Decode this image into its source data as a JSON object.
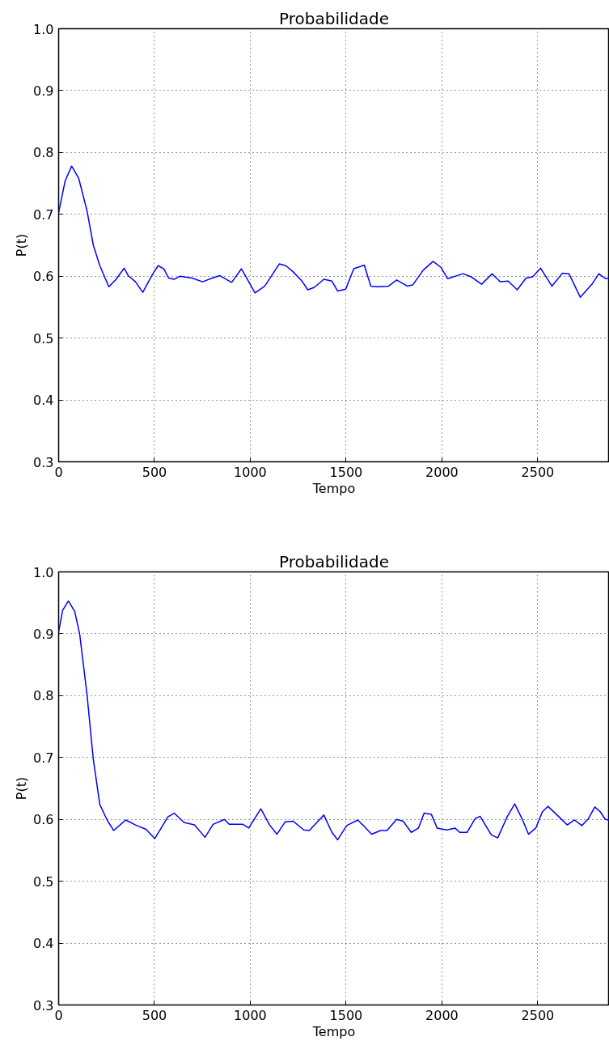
{
  "chart_data": [
    {
      "type": "line",
      "title": "Probabilidade",
      "xlabel": "Tempo",
      "ylabel": "P(t)",
      "xlim": [
        0,
        2874
      ],
      "ylim": [
        0.3,
        1.0
      ],
      "xticks": [
        0,
        500,
        1000,
        1500,
        2000,
        2500
      ],
      "yticks": [
        0.3,
        0.4,
        0.5,
        0.6,
        0.7,
        0.8,
        0.9,
        {
          "value": 1.0,
          "label": "1.0"
        }
      ],
      "grid": true,
      "line_style": "solid",
      "series": [
        {
          "color": "#0000ff",
          "x": [
            0,
            34,
            68,
            105,
            148,
            181,
            215,
            262,
            300,
            342,
            363,
            401,
            439,
            490,
            519,
            549,
            574,
            603,
            633,
            696,
            751,
            793,
            840,
            903,
            954,
            1025,
            1076,
            1152,
            1186,
            1224,
            1270,
            1300,
            1334,
            1384,
            1426,
            1456,
            1498,
            1540,
            1595,
            1629,
            1667,
            1722,
            1764,
            1819,
            1848,
            1903,
            1954,
            1996,
            2030,
            2110,
            2152,
            2207,
            2262,
            2304,
            2346,
            2393,
            2439,
            2473,
            2515,
            2574,
            2629,
            2663,
            2722,
            2785,
            2819,
            2853,
            2874
          ],
          "values": [
            0.703,
            0.754,
            0.778,
            0.758,
            0.706,
            0.65,
            0.617,
            0.583,
            0.595,
            0.613,
            0.601,
            0.591,
            0.574,
            0.603,
            0.617,
            0.612,
            0.597,
            0.595,
            0.6,
            0.597,
            0.591,
            0.596,
            0.601,
            0.59,
            0.612,
            0.573,
            0.584,
            0.62,
            0.617,
            0.607,
            0.592,
            0.578,
            0.582,
            0.595,
            0.592,
            0.576,
            0.579,
            0.612,
            0.618,
            0.584,
            0.583,
            0.584,
            0.594,
            0.584,
            0.586,
            0.61,
            0.624,
            0.614,
            0.596,
            0.604,
            0.599,
            0.587,
            0.604,
            0.591,
            0.592,
            0.578,
            0.597,
            0.599,
            0.613,
            0.584,
            0.605,
            0.604,
            0.566,
            0.588,
            0.604,
            0.596,
            0.597
          ]
        }
      ]
    },
    {
      "type": "line",
      "title": "Probabilidade",
      "xlabel": "Tempo",
      "ylabel": "P(t)",
      "xlim": [
        0,
        2874
      ],
      "ylim": [
        0.3,
        1.0
      ],
      "xticks": [
        0,
        500,
        1000,
        1500,
        2000,
        2500
      ],
      "yticks": [
        0.3,
        0.4,
        0.5,
        0.6,
        0.7,
        0.8,
        0.9,
        {
          "value": 1.0,
          "label": "1.0"
        }
      ],
      "grid": true,
      "line_style": "solid",
      "series": [
        {
          "color": "#0000ff",
          "x": [
            0,
            21,
            51,
            84,
            110,
            148,
            181,
            215,
            253,
            287,
            350,
            401,
            456,
            502,
            570,
            603,
            654,
            709,
            764,
            806,
            865,
            890,
            962,
            992,
            1055,
            1101,
            1139,
            1182,
            1224,
            1279,
            1308,
            1384,
            1426,
            1456,
            1503,
            1561,
            1587,
            1633,
            1680,
            1713,
            1764,
            1798,
            1840,
            1878,
            1907,
            1945,
            1975,
            2026,
            2068,
            2093,
            2131,
            2173,
            2199,
            2258,
            2291,
            2342,
            2380,
            2418,
            2452,
            2490,
            2524,
            2553,
            2608,
            2654,
            2692,
            2730,
            2764,
            2798,
            2827,
            2853,
            2874
          ],
          "values": [
            0.903,
            0.938,
            0.953,
            0.936,
            0.899,
            0.802,
            0.697,
            0.624,
            0.599,
            0.582,
            0.599,
            0.591,
            0.584,
            0.569,
            0.604,
            0.61,
            0.595,
            0.591,
            0.571,
            0.592,
            0.6,
            0.592,
            0.592,
            0.586,
            0.617,
            0.591,
            0.576,
            0.596,
            0.597,
            0.583,
            0.582,
            0.607,
            0.579,
            0.567,
            0.59,
            0.599,
            0.591,
            0.576,
            0.582,
            0.582,
            0.6,
            0.597,
            0.579,
            0.586,
            0.61,
            0.608,
            0.586,
            0.583,
            0.586,
            0.579,
            0.579,
            0.601,
            0.605,
            0.575,
            0.57,
            0.605,
            0.625,
            0.601,
            0.576,
            0.586,
            0.612,
            0.621,
            0.605,
            0.591,
            0.599,
            0.59,
            0.601,
            0.62,
            0.612,
            0.6,
            0.599
          ]
        }
      ]
    }
  ]
}
